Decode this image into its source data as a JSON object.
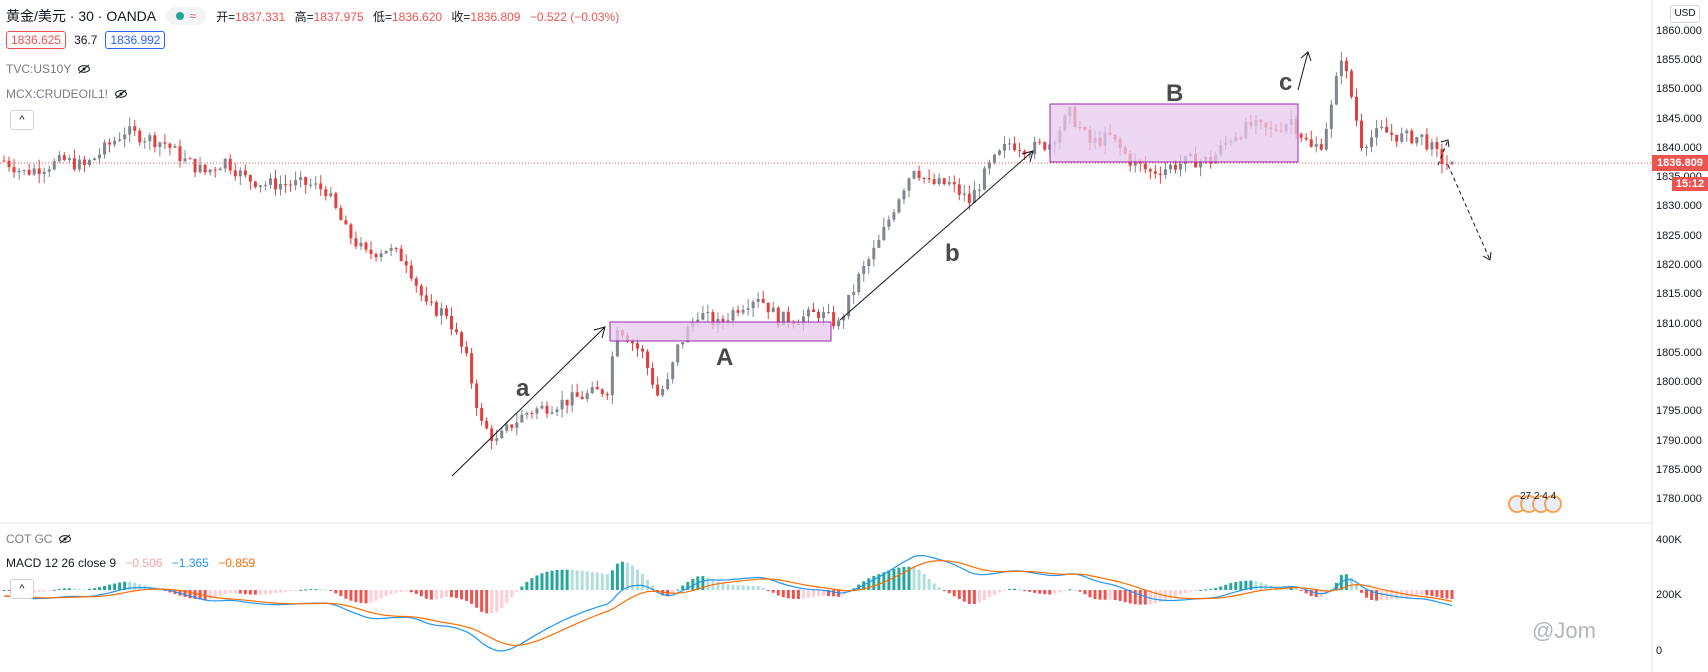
{
  "header": {
    "symbol": "黄金/美元 · 30 · OANDA",
    "open_label": "开=",
    "open": "1837.331",
    "high_label": "高=",
    "high": "1837.975",
    "low_label": "低=",
    "low": "1836.620",
    "close_label": "收=",
    "close": "1836.809",
    "change": "−0.522 (−0.03%)",
    "toggle_glyph": "≈"
  },
  "prices": {
    "bid": "1836.625",
    "spread": "36.7",
    "ask": "1836.992"
  },
  "legend": {
    "overlay1": "TVC:US10Y",
    "overlay2": "MCX:CRUDEOIL1!",
    "cot": "COT GC",
    "macd_name": "MACD 12 26 close 9",
    "macd_hist": "−0.506",
    "macd_line": "−1.365",
    "macd_signal": "−0.859",
    "collapse_glyph": "^"
  },
  "price_axis": {
    "currency": "USD",
    "ticks": [
      "1860.000",
      "1855.000",
      "1850.000",
      "1845.000",
      "1840.000",
      "1835.000",
      "1830.000",
      "1825.000",
      "1820.000",
      "1815.000",
      "1810.000",
      "1805.000",
      "1800.000",
      "1795.000",
      "1790.000",
      "1785.000",
      "1780.000"
    ],
    "current_price": "1836.809",
    "countdown": "15:12"
  },
  "macd_axis": {
    "ticks": [
      "400K",
      "200K",
      "0"
    ]
  },
  "annotations": {
    "a": "a",
    "A": "A",
    "b": "b",
    "B": "B",
    "c": "c"
  },
  "events": {
    "flags_text": "27 2 4 4"
  },
  "watermark": {
    "text": "@Jom"
  },
  "colors": {
    "up": "#7f868f",
    "down": "#e2403e",
    "box_fill": "#e6c8ec",
    "box_stroke": "#9c27b0",
    "price_line": "#ef5350",
    "macd": "#2196f3",
    "signal": "#ff6d00",
    "hist_up_strong": "#26a69a",
    "hist_up_weak": "#b2dfdb",
    "hist_down_strong": "#ef5350",
    "hist_down_weak": "#ffcdd2"
  },
  "chart_data": {
    "type": "candlestick",
    "instrument": "XAU/USD",
    "interval": "30",
    "ylim": [
      1778,
      1862
    ],
    "current_price": 1836.809,
    "close_path_points": [
      [
        0,
        1838
      ],
      [
        20,
        1836
      ],
      [
        40,
        1837
      ],
      [
        60,
        1838
      ],
      [
        80,
        1837
      ],
      [
        100,
        1840
      ],
      [
        120,
        1843
      ],
      [
        140,
        1842
      ],
      [
        160,
        1841
      ],
      [
        180,
        1838
      ],
      [
        200,
        1836
      ],
      [
        220,
        1838
      ],
      [
        240,
        1835
      ],
      [
        260,
        1834
      ],
      [
        280,
        1834
      ],
      [
        300,
        1834
      ],
      [
        320,
        1833
      ],
      [
        340,
        1826
      ],
      [
        360,
        1822
      ],
      [
        380,
        1823
      ],
      [
        400,
        1821
      ],
      [
        420,
        1813
      ],
      [
        440,
        1812
      ],
      [
        460,
        1804
      ],
      [
        475,
        1793
      ],
      [
        490,
        1790
      ],
      [
        505,
        1793
      ],
      [
        520,
        1795
      ],
      [
        540,
        1796
      ],
      [
        560,
        1797
      ],
      [
        580,
        1798
      ],
      [
        600,
        1799
      ],
      [
        610,
        1810
      ],
      [
        620,
        1808
      ],
      [
        635,
        1805
      ],
      [
        650,
        1798
      ],
      [
        660,
        1800
      ],
      [
        670,
        1806
      ],
      [
        690,
        1812
      ],
      [
        710,
        1810
      ],
      [
        730,
        1813
      ],
      [
        750,
        1815
      ],
      [
        770,
        1811
      ],
      [
        790,
        1811
      ],
      [
        810,
        1812
      ],
      [
        830,
        1810
      ],
      [
        850,
        1818
      ],
      [
        870,
        1824
      ],
      [
        890,
        1832
      ],
      [
        905,
        1837
      ],
      [
        920,
        1834
      ],
      [
        940,
        1834
      ],
      [
        960,
        1831
      ],
      [
        980,
        1837
      ],
      [
        1000,
        1841
      ],
      [
        1020,
        1840
      ],
      [
        1040,
        1841
      ],
      [
        1060,
        1846
      ],
      [
        1080,
        1841
      ],
      [
        1100,
        1842
      ],
      [
        1120,
        1838
      ],
      [
        1140,
        1836
      ],
      [
        1160,
        1837
      ],
      [
        1180,
        1838
      ],
      [
        1200,
        1838
      ],
      [
        1220,
        1842
      ],
      [
        1240,
        1844
      ],
      [
        1260,
        1843
      ],
      [
        1280,
        1845
      ],
      [
        1300,
        1840
      ],
      [
        1310,
        1841
      ],
      [
        1320,
        1847
      ],
      [
        1330,
        1856
      ],
      [
        1340,
        1849
      ],
      [
        1350,
        1841
      ],
      [
        1370,
        1843
      ],
      [
        1390,
        1842
      ],
      [
        1410,
        1842
      ],
      [
        1430,
        1838
      ],
      [
        1440,
        1837
      ]
    ],
    "zones": [
      {
        "label": "A",
        "price_high": 1811,
        "price_low": 1808
      },
      {
        "label": "B",
        "price_high": 1847,
        "price_low": 1837
      }
    ],
    "wave_labels": [
      "a",
      "A",
      "b",
      "B",
      "c"
    ],
    "macd": {
      "line": -1.365,
      "signal": -0.859,
      "histogram": -0.506
    }
  }
}
